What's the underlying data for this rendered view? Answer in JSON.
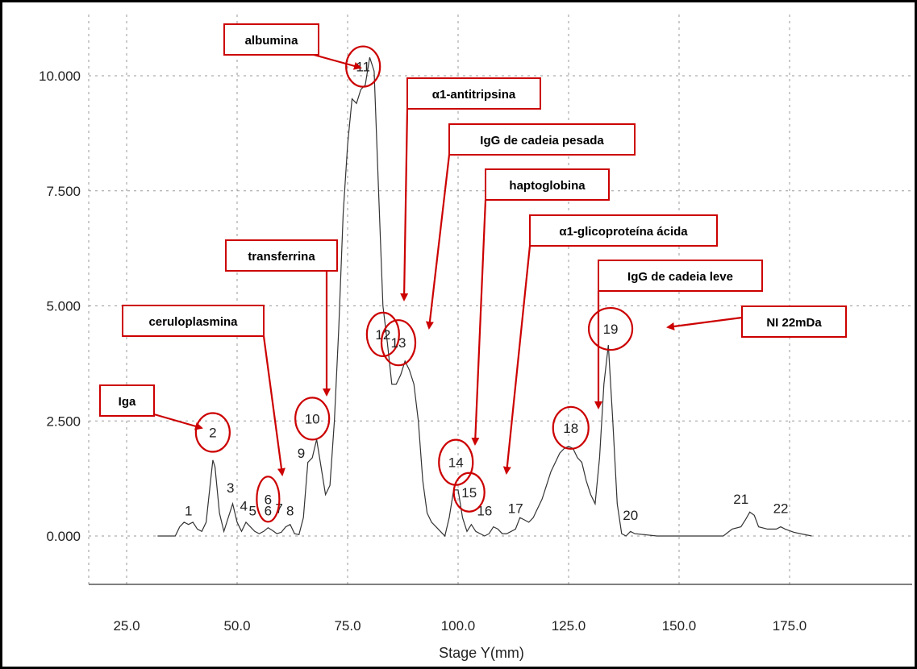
{
  "chart_data": {
    "type": "line",
    "title": "",
    "xlabel": "Stage Y(mm)",
    "ylabel": "",
    "xlim": [
      15,
      195
    ],
    "ylim": [
      -1000,
      11300
    ],
    "grid": true,
    "x_ticks": [
      25,
      50,
      75,
      100,
      125,
      150,
      175
    ],
    "x_tick_labels": [
      "25.0",
      "50.0",
      "75.0",
      "100.0",
      "125.0",
      "150.0",
      "175.0"
    ],
    "y_ticks": [
      0,
      2500,
      5000,
      7500,
      10000
    ],
    "y_tick_labels": [
      "0.000",
      "2.500",
      "5.000",
      "7.500",
      "10.000"
    ],
    "series": [
      {
        "x": [
          32,
          36,
          37,
          38,
          39,
          40,
          41,
          42,
          43,
          44,
          44.5,
          45,
          46,
          47,
          48,
          49,
          50,
          51,
          52,
          53,
          54,
          55,
          56,
          57,
          58,
          59,
          60,
          61,
          62,
          63,
          64,
          65,
          66,
          67,
          68,
          69,
          70,
          71,
          72,
          73,
          74,
          75,
          76,
          77,
          78,
          79,
          80,
          81,
          82,
          83,
          84,
          85,
          86,
          87,
          88,
          89,
          90,
          91,
          92,
          93,
          94,
          95,
          96,
          97,
          98,
          99,
          100,
          101,
          102,
          103,
          104,
          105,
          106,
          107,
          108,
          109,
          110,
          111,
          112,
          113,
          114,
          115,
          116,
          117,
          118,
          119,
          120,
          121,
          122,
          123,
          124,
          125,
          126,
          127,
          128,
          129,
          130,
          131,
          132,
          133,
          134,
          135,
          136,
          137,
          138,
          139,
          140,
          145,
          155,
          160,
          162,
          164,
          165,
          166,
          167,
          168,
          170,
          172,
          173,
          174,
          176,
          180
        ],
        "y": [
          0,
          0,
          200,
          300,
          250,
          300,
          150,
          100,
          300,
          1200,
          1650,
          1500,
          500,
          100,
          400,
          700,
          300,
          100,
          300,
          200,
          100,
          50,
          100,
          180,
          120,
          50,
          80,
          200,
          250,
          50,
          30,
          400,
          1600,
          1700,
          2100,
          1500,
          900,
          1100,
          2500,
          4500,
          7000,
          8500,
          9500,
          9400,
          9700,
          9800,
          10400,
          10100,
          7500,
          5000,
          4200,
          3300,
          3300,
          3500,
          3800,
          3600,
          3300,
          2500,
          1200,
          500,
          300,
          200,
          100,
          0,
          400,
          1000,
          1000,
          400,
          100,
          250,
          100,
          50,
          0,
          50,
          200,
          150,
          50,
          50,
          100,
          150,
          400,
          350,
          300,
          400,
          600,
          800,
          1100,
          1400,
          1600,
          1800,
          1900,
          1950,
          1900,
          1700,
          1600,
          1200,
          900,
          700,
          1700,
          3300,
          4150,
          2500,
          700,
          50,
          0,
          100,
          50,
          0,
          0,
          0,
          150,
          200,
          350,
          520,
          450,
          200,
          150,
          150,
          200,
          150,
          80,
          0
        ]
      }
    ],
    "peak_numbers": [
      {
        "label": "1",
        "x": 39,
        "y": 450
      },
      {
        "label": "3",
        "x": 48.5,
        "y": 950
      },
      {
        "label": "4",
        "x": 51.5,
        "y": 550
      },
      {
        "label": "5",
        "x": 53.5,
        "y": 450
      },
      {
        "label": "6",
        "x": 57,
        "y": 450
      },
      {
        "label": "7",
        "x": 59.5,
        "y": 500
      },
      {
        "label": "8",
        "x": 62,
        "y": 450
      },
      {
        "label": "9",
        "x": 64.5,
        "y": 1700
      },
      {
        "label": "16",
        "x": 106,
        "y": 450
      },
      {
        "label": "17",
        "x": 113,
        "y": 500
      },
      {
        "label": "20",
        "x": 139,
        "y": 350
      },
      {
        "label": "21",
        "x": 164,
        "y": 700
      },
      {
        "label": "22",
        "x": 173,
        "y": 500
      }
    ],
    "circled_peaks": [
      {
        "label": "2",
        "x": 44.5,
        "y": 2250
      },
      {
        "label": "6",
        "x": 57,
        "y": 800
      },
      {
        "label": "10",
        "x": 67,
        "y": 2550
      },
      {
        "label": "11",
        "x": 78.5,
        "y": 10200
      },
      {
        "label": "12",
        "x": 83,
        "y": 4380
      },
      {
        "label": "13",
        "x": 86.5,
        "y": 4200
      },
      {
        "label": "14",
        "x": 99.5,
        "y": 1600
      },
      {
        "label": "15",
        "x": 102.5,
        "y": 950
      },
      {
        "label": "18",
        "x": 125.5,
        "y": 2350
      },
      {
        "label": "19",
        "x": 134.5,
        "y": 4500
      }
    ],
    "annotations": [
      {
        "text": "albumina",
        "target": "11"
      },
      {
        "text": "α1-antitripsina",
        "target": "12"
      },
      {
        "text": "IgG de cadeia pesada",
        "target": "13"
      },
      {
        "text": "haptoglobina",
        "target": "14"
      },
      {
        "text": "transferrina",
        "target": "10"
      },
      {
        "text": "α1-glicoproteína ácida",
        "target": "15"
      },
      {
        "text": "IgG de cadeia leve",
        "target": "18"
      },
      {
        "text": "ceruloplasmina",
        "target": "6"
      },
      {
        "text": "NI 22mDa",
        "target": "19"
      },
      {
        "text": "Iga",
        "target": "2"
      }
    ]
  }
}
